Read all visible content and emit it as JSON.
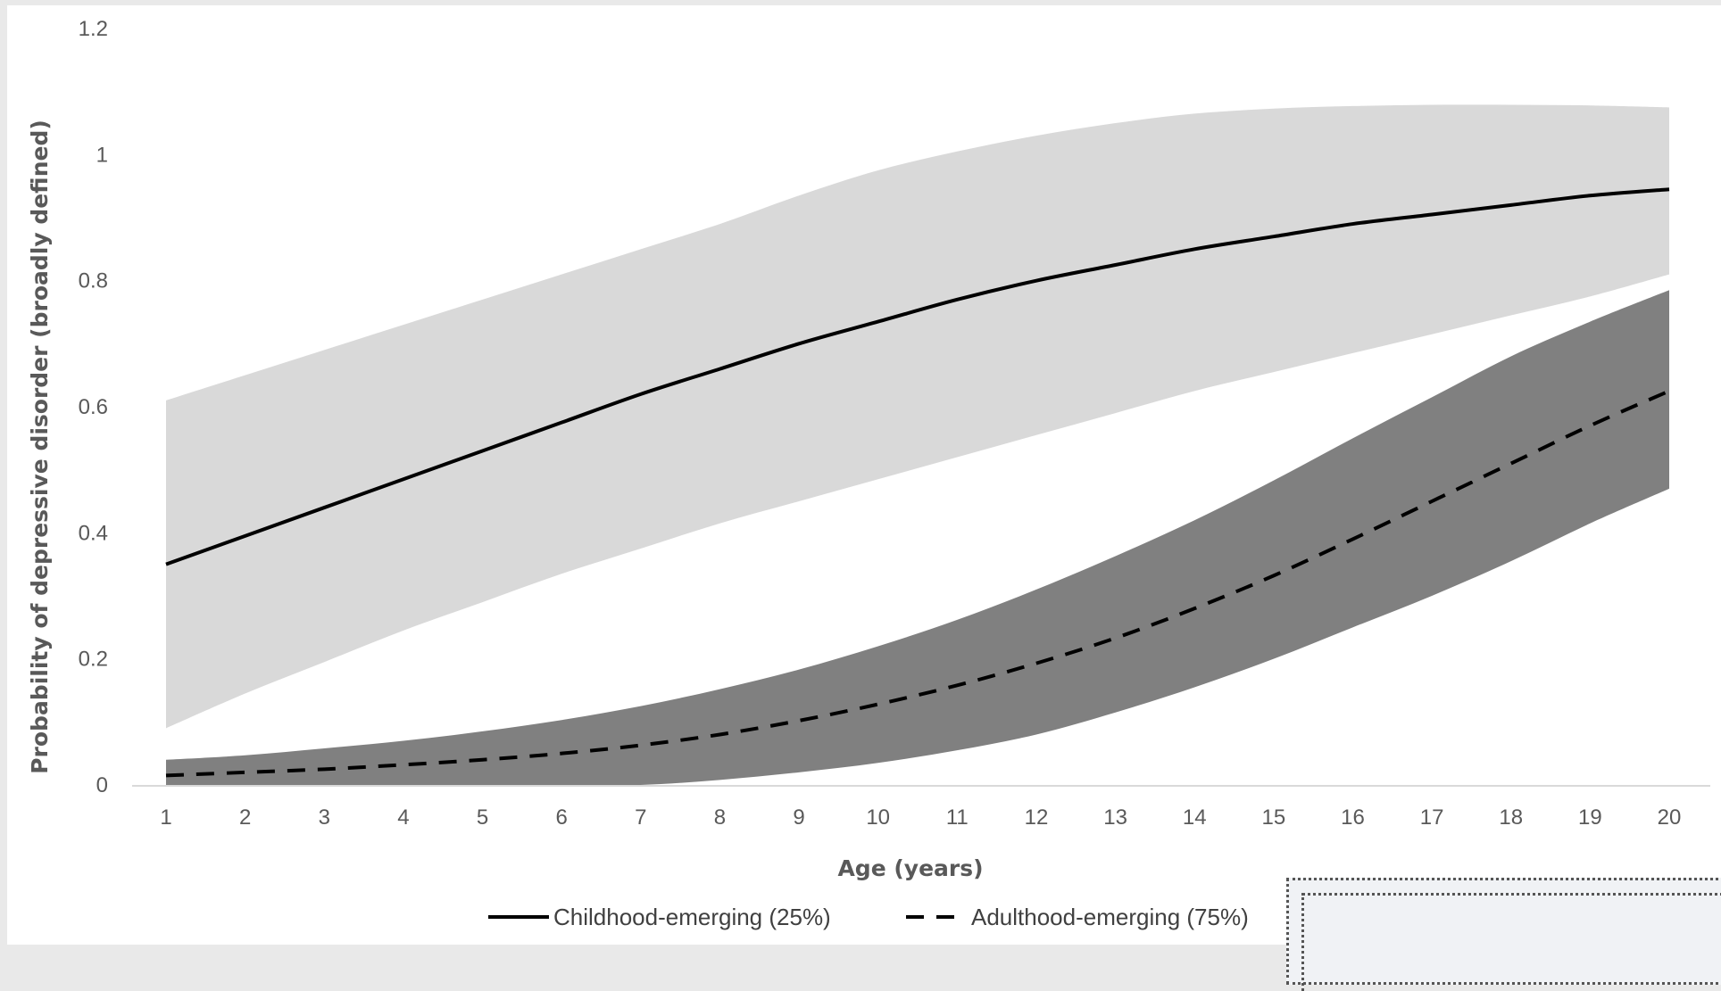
{
  "chart_data": {
    "type": "line",
    "title": "",
    "xlabel": "Age (years)",
    "ylabel": "Probability of depressive disorder (broadly defined)",
    "x": [
      1,
      2,
      3,
      4,
      5,
      6,
      7,
      8,
      9,
      10,
      11,
      12,
      13,
      14,
      15,
      16,
      17,
      18,
      19,
      20
    ],
    "xlim": [
      1,
      20
    ],
    "ylim": [
      0,
      1.2
    ],
    "yticks": [
      "0",
      "0.2",
      "0.4",
      "0.6",
      "0.8",
      "1",
      "1.2"
    ],
    "xticks": [
      "1",
      "2",
      "3",
      "4",
      "5",
      "6",
      "7",
      "8",
      "9",
      "10",
      "11",
      "12",
      "13",
      "14",
      "15",
      "16",
      "17",
      "18",
      "19",
      "20"
    ],
    "grid": false,
    "legend_position": "bottom",
    "series": [
      {
        "name": "Childhood-emerging (25%)",
        "line_style": "solid",
        "line_color": "#000000",
        "band_color": "#d9d9d9",
        "values": [
          0.35,
          0.395,
          0.44,
          0.485,
          0.53,
          0.575,
          0.62,
          0.66,
          0.7,
          0.735,
          0.77,
          0.8,
          0.825,
          0.85,
          0.87,
          0.89,
          0.905,
          0.92,
          0.935,
          0.945
        ],
        "lower": [
          0.09,
          0.145,
          0.195,
          0.245,
          0.29,
          0.335,
          0.375,
          0.415,
          0.45,
          0.485,
          0.52,
          0.555,
          0.59,
          0.625,
          0.655,
          0.685,
          0.715,
          0.745,
          0.775,
          0.81
        ],
        "upper": [
          0.61,
          0.65,
          0.69,
          0.73,
          0.77,
          0.81,
          0.85,
          0.89,
          0.935,
          0.975,
          1.005,
          1.03,
          1.05,
          1.065,
          1.073,
          1.077,
          1.079,
          1.079,
          1.078,
          1.075
        ]
      },
      {
        "name": "Adulthood-emerging (75%)",
        "line_style": "dashed",
        "line_color": "#000000",
        "band_color": "#808080",
        "values": [
          0.015,
          0.02,
          0.025,
          0.032,
          0.04,
          0.05,
          0.063,
          0.08,
          0.102,
          0.128,
          0.158,
          0.193,
          0.233,
          0.28,
          0.332,
          0.39,
          0.45,
          0.51,
          0.57,
          0.625
        ],
        "lower": [
          0.0,
          0.0,
          0.0,
          0.0,
          0.0,
          0.0,
          0.0,
          0.008,
          0.02,
          0.035,
          0.055,
          0.08,
          0.115,
          0.155,
          0.2,
          0.25,
          0.3,
          0.355,
          0.415,
          0.47
        ],
        "upper": [
          0.04,
          0.047,
          0.058,
          0.07,
          0.085,
          0.103,
          0.125,
          0.152,
          0.183,
          0.22,
          0.262,
          0.31,
          0.363,
          0.42,
          0.483,
          0.55,
          0.615,
          0.68,
          0.735,
          0.785
        ]
      }
    ]
  }
}
